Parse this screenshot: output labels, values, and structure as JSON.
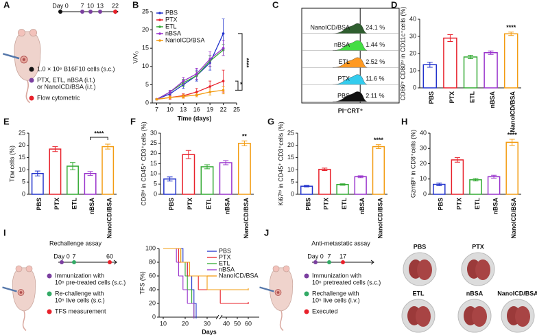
{
  "chart_data": [
    {
      "type": "line",
      "panel": "B",
      "ylabel": "V/V₀",
      "xlabel": "Time (days)",
      "x": [
        7,
        10,
        13,
        16,
        19,
        22
      ],
      "xlim": [
        6,
        25
      ],
      "xticks": [
        7,
        10,
        13,
        16,
        19,
        22,
        25
      ],
      "ylim": [
        0,
        25
      ],
      "yticks": [
        0,
        5,
        10,
        15,
        20,
        25
      ],
      "series": [
        {
          "name": "PBS",
          "color": "#2233cc",
          "values": [
            1,
            2.5,
            5,
            7.5,
            11,
            19
          ],
          "errors": [
            0.2,
            0.5,
            1,
            1.5,
            2,
            4
          ]
        },
        {
          "name": "PTX",
          "color": "#e8202a",
          "values": [
            1,
            1.5,
            2,
            3,
            4.5,
            6
          ],
          "errors": [
            0.1,
            0.5,
            0.5,
            1,
            1.5,
            3
          ]
        },
        {
          "name": "ETL",
          "color": "#33aa33",
          "values": [
            1,
            3,
            5.5,
            7.5,
            11.5,
            14.5
          ],
          "errors": [
            0.1,
            0.5,
            1,
            1,
            1.5,
            1.5
          ]
        },
        {
          "name": "nBSA",
          "color": "#9933cc",
          "values": [
            1,
            3,
            6,
            8,
            12,
            15
          ],
          "errors": [
            0.1,
            0.5,
            1,
            1.5,
            2,
            2
          ]
        },
        {
          "name": "NanoICD/BSA",
          "color": "#f39c12",
          "values": [
            1,
            1.5,
            1.8,
            2.2,
            3,
            3.5
          ],
          "errors": [
            0.1,
            0.3,
            0.5,
            0.5,
            0.8,
            1
          ]
        }
      ],
      "annotations": [
        "*",
        "****"
      ]
    },
    {
      "type": "ridge",
      "panel": "C",
      "xlabel": "PI⁻CRT⁺",
      "categories": [
        "NanoICD/BSA",
        "nBSA",
        "ETL",
        "PTX",
        "PBS"
      ],
      "values": [
        24.1,
        1.44,
        2.52,
        11.6,
        2.11
      ],
      "value_labels": [
        "24.1 %",
        "1.44 %",
        "2.52 %",
        "11.6 %",
        "2.11 %"
      ],
      "colors": [
        "#2f5e2f",
        "#44dd44",
        "#ff9922",
        "#33ccee",
        "#111111"
      ]
    },
    {
      "type": "bar",
      "panel": "D",
      "ylabel": "CD86ʰⁱ CD80ʰⁱ in CD11c⁺cells (%)",
      "categories": [
        "PBS",
        "PTX",
        "ETL",
        "nBSA",
        "NanoICD/BSA"
      ],
      "colors": [
        "#2233cc",
        "#e8202a",
        "#33aa33",
        "#9933cc",
        "#f39c12"
      ],
      "values": [
        13.5,
        29,
        18,
        20.5,
        31.5
      ],
      "errors": [
        1.5,
        2,
        1,
        1,
        1
      ],
      "ylim": [
        0,
        40
      ],
      "yticks": [
        0,
        10,
        20,
        30,
        40
      ],
      "annotations": [
        "****"
      ]
    },
    {
      "type": "bar",
      "panel": "E",
      "ylabel": "Tᴇᴍ cells (%)",
      "categories": [
        "PBS",
        "PTX",
        "ETL",
        "nBSA",
        "NanoICD/BSA"
      ],
      "colors": [
        "#2233cc",
        "#e8202a",
        "#33aa33",
        "#9933cc",
        "#f39c12"
      ],
      "values": [
        8.5,
        18.5,
        11.5,
        8.5,
        19.5
      ],
      "errors": [
        1,
        1,
        1.5,
        0.8,
        1
      ],
      "ylim": [
        0,
        25
      ],
      "yticks": [
        0,
        5,
        10,
        15,
        20,
        25
      ],
      "annotations": [
        "****"
      ]
    },
    {
      "type": "bar",
      "panel": "F",
      "ylabel": "CD8ʰⁱ in CD45⁺ CD3⁺cells (%)",
      "categories": [
        "PBS",
        "PTX",
        "ETL",
        "nBSA",
        "NanoICD/BSA"
      ],
      "colors": [
        "#2233cc",
        "#e8202a",
        "#33aa33",
        "#9933cc",
        "#f39c12"
      ],
      "values": [
        7.5,
        19.5,
        13.5,
        15.5,
        25
      ],
      "errors": [
        1,
        2,
        1,
        1,
        1.2
      ],
      "ylim": [
        0,
        30
      ],
      "yticks": [
        0,
        5,
        10,
        15,
        20,
        25,
        30
      ],
      "annotations": [
        "**"
      ]
    },
    {
      "type": "bar",
      "panel": "G",
      "ylabel": "Ki67ʰⁱ in CD45⁺ CD3⁺cells (%)",
      "categories": [
        "PBS",
        "PTX",
        "ETL",
        "nBSA",
        "NanoICD/BSA"
      ],
      "colors": [
        "#2233cc",
        "#e8202a",
        "#33aa33",
        "#9933cc",
        "#f39c12"
      ],
      "values": [
        3.3,
        10.2,
        4,
        7.2,
        19.5
      ],
      "errors": [
        0.3,
        0.5,
        0.3,
        0.4,
        0.8
      ],
      "ylim": [
        0,
        25
      ],
      "yticks": [
        0,
        5,
        10,
        15,
        20,
        25
      ],
      "annotations": [
        "****"
      ]
    },
    {
      "type": "bar",
      "panel": "H",
      "ylabel": "GzmBʰⁱ in CD8⁺cells (%)",
      "categories": [
        "PBS",
        "PTX",
        "ETL",
        "nBSA",
        "NanoICD/BSA"
      ],
      "colors": [
        "#2233cc",
        "#e8202a",
        "#33aa33",
        "#9933cc",
        "#f39c12"
      ],
      "values": [
        6.5,
        22.5,
        9.5,
        11.5,
        34
      ],
      "errors": [
        0.8,
        1.5,
        0.8,
        1,
        2
      ],
      "ylim": [
        0,
        40
      ],
      "yticks": [
        0,
        10,
        20,
        30,
        40
      ],
      "annotations": [
        "****"
      ]
    },
    {
      "type": "step",
      "ylabel": "TFS (%)",
      "xlabel": "Days",
      "xlim": [
        8,
        60
      ],
      "xticks": [
        10,
        20,
        30,
        40,
        50,
        60
      ],
      "ylim": [
        0,
        100
      ],
      "yticks": [
        0,
        20,
        40,
        60,
        80,
        100
      ],
      "series": [
        {
          "name": "PBS",
          "color": "#2233cc",
          "x": [
            10,
            19,
            21,
            23,
            24,
            25
          ],
          "values": [
            100,
            80,
            60,
            40,
            20,
            0
          ]
        },
        {
          "name": "PTX",
          "color": "#e8202a",
          "x": [
            10,
            17,
            21,
            26,
            36,
            60
          ],
          "values": [
            100,
            80,
            60,
            40,
            20,
            20
          ]
        },
        {
          "name": "ETL",
          "color": "#33aa33",
          "x": [
            10,
            18,
            20,
            21,
            23,
            24
          ],
          "values": [
            100,
            80,
            60,
            40,
            20,
            0
          ]
        },
        {
          "name": "nBSA",
          "color": "#9933cc",
          "x": [
            10,
            16,
            17,
            19,
            21,
            24
          ],
          "values": [
            100,
            80,
            60,
            40,
            20,
            0
          ]
        },
        {
          "name": "NanoICD/BSA",
          "color": "#f39c12",
          "x": [
            10,
            18,
            22,
            30,
            60
          ],
          "values": [
            100,
            80,
            60,
            40,
            40
          ]
        }
      ]
    }
  ],
  "schematics": [
    {
      "panel": "A",
      "days": [
        "Day 0",
        "7",
        "10",
        "13",
        "22"
      ],
      "dot_colors": [
        "#111111",
        "#7b3fa0",
        "#7b3fa0",
        "#7b3fa0",
        "#e8202a"
      ],
      "legend": [
        {
          "color": "#111111",
          "lines": [
            "1.0 × 10⁶ B16F10 cells (s.c.)"
          ]
        },
        {
          "color": "#7b3fa0",
          "lines": [
            "PTX, ETL, nBSA (i.t.)",
            "or NanoICD/BSA (i.t.)"
          ]
        },
        {
          "color": "#e8202a",
          "lines": [
            "Flow cytometric"
          ]
        }
      ]
    },
    {
      "panel": "I",
      "title": "Rechallenge assay",
      "days": [
        "Day 0",
        "7",
        "60"
      ],
      "dot_colors": [
        "#7b3fa0",
        "#33aa66",
        "#e8202a"
      ],
      "legend": [
        {
          "color": "#7b3fa0",
          "lines": [
            "Immunization with",
            "10⁶ pre-treated cells (s.c.)"
          ]
        },
        {
          "color": "#33aa66",
          "lines": [
            "Re-challenge with",
            "10⁵ live cells (s.c.)"
          ]
        },
        {
          "color": "#e8202a",
          "lines": [
            "TFS measurement"
          ]
        }
      ]
    },
    {
      "panel": "J",
      "title": "Anti-metastatic assay",
      "days": [
        "Day 0",
        "7",
        "17"
      ],
      "dot_colors": [
        "#7b3fa0",
        "#33aa66",
        "#e8202a"
      ],
      "legend": [
        {
          "color": "#7b3fa0",
          "lines": [
            "Immunization with",
            "10⁶ pretreated cells (s.c.)"
          ]
        },
        {
          "color": "#33aa66",
          "lines": [
            "Rechallenge with",
            "10⁵ live cells (i.v.)"
          ]
        },
        {
          "color": "#e8202a",
          "lines": [
            "Executed"
          ]
        }
      ],
      "photos": [
        "PBS",
        "PTX",
        "ETL",
        "nBSA",
        "NanoICD/BSA"
      ]
    }
  ]
}
